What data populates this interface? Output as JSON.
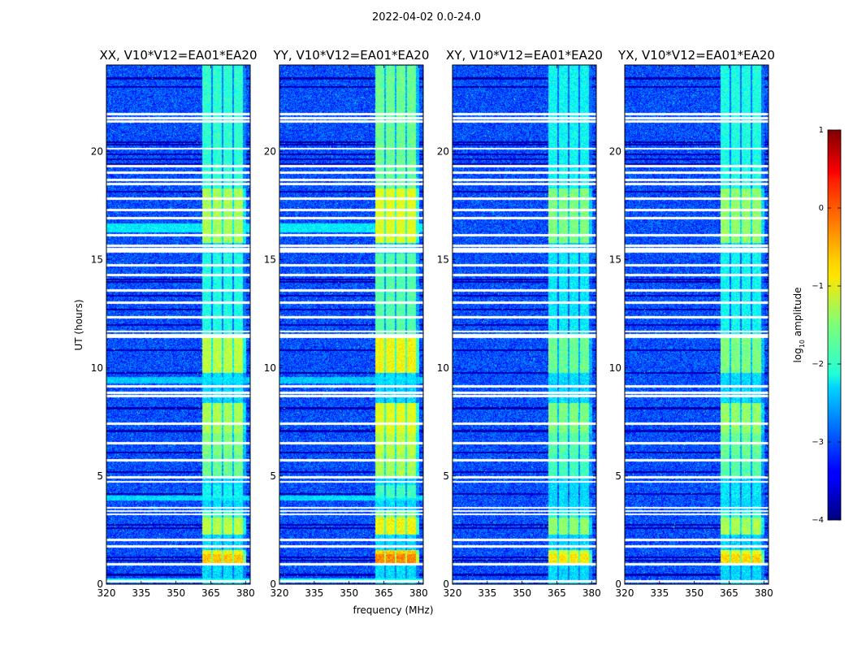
{
  "figure": {
    "suptitle": "2022-04-02 0.0-24.0",
    "xlabel": "frequency (MHz)",
    "ylabel": "UT (hours)",
    "colorbar": {
      "label_prefix": "log",
      "label_sub": "10",
      "label_suffix": " amplitude",
      "ticks": [
        1,
        0,
        -1,
        -2,
        -3,
        -4
      ],
      "tick_labels": [
        "1",
        "0",
        "−1",
        "−2",
        "−3",
        "−4"
      ],
      "range": [
        -4,
        1
      ],
      "colormap": "jet"
    }
  },
  "chart_data": {
    "type": "heatmap",
    "title": "2022-04-02 0.0-24.0",
    "xlabel": "frequency (MHz)",
    "ylabel": "UT (hours)",
    "xlim": [
      320,
      382
    ],
    "ylim": [
      0,
      24
    ],
    "xticks": [
      320,
      335,
      350,
      365,
      380
    ],
    "xtick_labels": [
      "320",
      "335",
      "350",
      "365",
      "380"
    ],
    "yticks": [
      0,
      5,
      10,
      15,
      20
    ],
    "ytick_labels": [
      "0",
      "5",
      "10",
      "15",
      "20"
    ],
    "colorbar_range": [
      -4,
      1
    ],
    "panels": [
      {
        "title": "XX, V10*V12=EA01*EA20",
        "id": "xx",
        "cross": false,
        "enh": 1.0
      },
      {
        "title": "YY, V10*V12=EA01*EA20",
        "id": "yy",
        "cross": false,
        "enh": 1.15
      },
      {
        "title": "XY, V10*V12=EA01*EA20",
        "id": "xy",
        "cross": true,
        "enh": 0.9
      },
      {
        "title": "YX, V10*V12=EA01*EA20",
        "id": "yx",
        "cross": true,
        "enh": 0.95
      }
    ],
    "background_level": -3.0,
    "rfi_band": {
      "start_mhz": 361,
      "end_mhz": 380
    },
    "rfi_subchannels_mhz": [
      [
        361,
        365
      ],
      [
        365.6,
        369.5
      ],
      [
        370.1,
        374.2
      ],
      [
        374.8,
        378.5
      ]
    ],
    "rfi_time_segments": [
      {
        "t0": 0.9,
        "t1": 1.4,
        "level": -0.6
      },
      {
        "t0": 1.4,
        "t1": 1.6,
        "level": -0.9
      },
      {
        "t0": 2.3,
        "t1": 3.1,
        "level": -1.2
      },
      {
        "t0": 3.1,
        "t1": 3.4,
        "level": -1.8
      },
      {
        "t0": 4.0,
        "t1": 4.6,
        "level": -2.1
      },
      {
        "t0": 5.0,
        "t1": 6.0,
        "level": -1.6
      },
      {
        "t0": 6.0,
        "t1": 7.0,
        "level": -1.5
      },
      {
        "t0": 7.0,
        "t1": 8.4,
        "level": -1.3
      },
      {
        "t0": 9.8,
        "t1": 11.6,
        "level": -1.2
      },
      {
        "t0": 11.6,
        "t1": 15.3,
        "level": -2.0
      },
      {
        "t0": 15.8,
        "t1": 18.3,
        "level": -1.3
      },
      {
        "t0": 18.3,
        "t1": 24.0,
        "level": -1.9
      }
    ],
    "broadband_segments": [
      {
        "t0": 0.1,
        "t1": 0.3,
        "level": -2.1,
        "pols": [
          "xx",
          "yy"
        ]
      },
      {
        "t0": 3.9,
        "t1": 4.1,
        "level": -2.3,
        "pols": [
          "xx",
          "yy"
        ]
      },
      {
        "t0": 9.3,
        "t1": 9.6,
        "level": -2.4,
        "pols": [
          "xx",
          "yy"
        ]
      },
      {
        "t0": 16.3,
        "t1": 16.7,
        "level": -2.2,
        "pols": [
          "xx",
          "yy"
        ]
      }
    ],
    "flagged_rows_hours": [
      0.15,
      0.95,
      1.75,
      2.05,
      3.25,
      3.4,
      3.55,
      4.75,
      4.95,
      5.75,
      6.55,
      7.45,
      8.7,
      8.85,
      9.15,
      11.45,
      11.55,
      11.7,
      12.35,
      13.05,
      13.6,
      14.3,
      14.75,
      15.4,
      15.5,
      15.65,
      16.15,
      16.95,
      17.3,
      17.85,
      18.5,
      18.7,
      19.05,
      19.35,
      20.15,
      21.4,
      21.55,
      21.75
    ],
    "dark_rows_hours": [
      0.45,
      1.1,
      1.25,
      2.6,
      2.75,
      4.2,
      5.2,
      6.1,
      7.1,
      8.15,
      9.8,
      10.85,
      12.0,
      12.7,
      13.35,
      14.0,
      14.1,
      18.15,
      19.45,
      19.65,
      19.9,
      20.35,
      20.45,
      23.0,
      23.4
    ]
  }
}
